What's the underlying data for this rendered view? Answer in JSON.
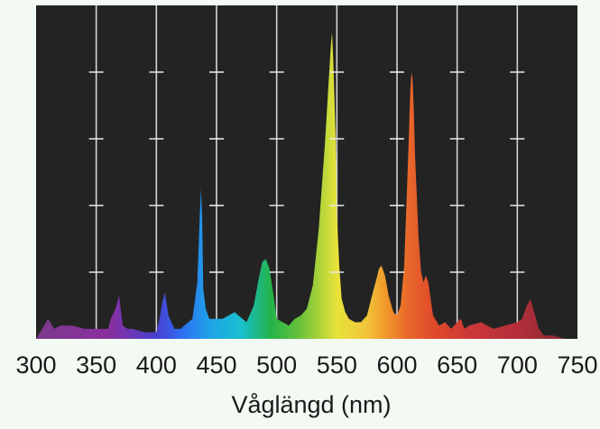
{
  "chart_data": {
    "type": "area",
    "title": "",
    "xlabel": "Våglängd (nm)",
    "ylabel": "",
    "xlim": [
      300,
      750
    ],
    "ylim": [
      0,
      1
    ],
    "x_ticks": [
      300,
      350,
      400,
      450,
      500,
      550,
      600,
      650,
      700,
      750
    ],
    "x_tick_labels": [
      "300",
      "350",
      "400",
      "450",
      "500",
      "550",
      "600",
      "650",
      "700",
      "750"
    ],
    "grid": true,
    "legend": "none",
    "colors": {
      "plot_background": "#232323",
      "page_background": "#f3faf3",
      "gridline": "#e8e8e8",
      "text": "#1a1a1a"
    },
    "series": [
      {
        "x": [
          300,
          305,
          310,
          315,
          320,
          330,
          340,
          350,
          360,
          362,
          366,
          369,
          372,
          376,
          380,
          390,
          400,
          402,
          405,
          407,
          410,
          415,
          420,
          430,
          434,
          436,
          437,
          438,
          439,
          441,
          444,
          448,
          455,
          465,
          475,
          481,
          485,
          488,
          491,
          494,
          497,
          500,
          505,
          510,
          515,
          520,
          525,
          530,
          535,
          540,
          543,
          545,
          546,
          547,
          548,
          549,
          550,
          552,
          554,
          557,
          560,
          565,
          570,
          575,
          580,
          583,
          585,
          587,
          590,
          593,
          597,
          600,
          603,
          606,
          608,
          610,
          611,
          612,
          613,
          614,
          615,
          618,
          620,
          622,
          624,
          626,
          628,
          630,
          635,
          640,
          645,
          650,
          653,
          656,
          660,
          670,
          680,
          690,
          700,
          704,
          708,
          711,
          714,
          718,
          722,
          730,
          740,
          750
        ],
        "y": [
          0.0,
          0.03,
          0.06,
          0.03,
          0.04,
          0.04,
          0.03,
          0.03,
          0.03,
          0.06,
          0.09,
          0.13,
          0.04,
          0.03,
          0.03,
          0.02,
          0.02,
          0.05,
          0.11,
          0.14,
          0.07,
          0.03,
          0.03,
          0.06,
          0.17,
          0.36,
          0.45,
          0.37,
          0.15,
          0.09,
          0.06,
          0.06,
          0.06,
          0.08,
          0.05,
          0.1,
          0.18,
          0.23,
          0.24,
          0.21,
          0.14,
          0.06,
          0.05,
          0.04,
          0.06,
          0.07,
          0.09,
          0.16,
          0.33,
          0.58,
          0.76,
          0.88,
          0.92,
          0.84,
          0.72,
          0.6,
          0.38,
          0.22,
          0.12,
          0.08,
          0.06,
          0.05,
          0.05,
          0.07,
          0.14,
          0.18,
          0.21,
          0.22,
          0.19,
          0.13,
          0.08,
          0.07,
          0.1,
          0.22,
          0.42,
          0.62,
          0.74,
          0.8,
          0.78,
          0.68,
          0.55,
          0.3,
          0.2,
          0.17,
          0.19,
          0.17,
          0.12,
          0.07,
          0.04,
          0.05,
          0.03,
          0.05,
          0.06,
          0.03,
          0.04,
          0.05,
          0.03,
          0.04,
          0.05,
          0.06,
          0.1,
          0.12,
          0.08,
          0.03,
          0.01,
          0.01,
          0.0,
          0.0
        ]
      }
    ]
  }
}
